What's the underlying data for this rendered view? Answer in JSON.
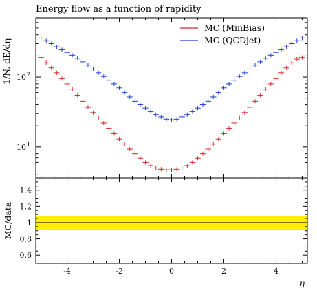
{
  "chart_data": {
    "type": "scatter",
    "title": "Energy flow as a function of rapidity",
    "xlabel": "η",
    "ylabel": "1/N, dE/dη",
    "yscale": "log",
    "xlim": [
      -5.2,
      5.2
    ],
    "ylim": [
      3.6,
      700
    ],
    "x_ticks": [
      -4,
      -2,
      0,
      2,
      4
    ],
    "x_tick_labels": [
      "-4",
      "-2",
      "0",
      "2",
      "4"
    ],
    "y_ticks": [
      {
        "base": "10",
        "exp": "1",
        "value": 10
      },
      {
        "base": "10",
        "exp": "2",
        "value": 100
      }
    ],
    "legend_position": "top-right",
    "series": [
      {
        "name": "MC (MinBias)",
        "color": "#d62728",
        "x": [
          -5.0,
          -4.8,
          -4.6,
          -4.4,
          -4.2,
          -4.0,
          -3.8,
          -3.6,
          -3.4,
          -3.2,
          -3.0,
          -2.8,
          -2.6,
          -2.4,
          -2.2,
          -2.0,
          -1.8,
          -1.6,
          -1.4,
          -1.2,
          -1.0,
          -0.8,
          -0.6,
          -0.4,
          -0.2,
          0.0,
          0.2,
          0.4,
          0.6,
          0.8,
          1.0,
          1.2,
          1.4,
          1.6,
          1.8,
          2.0,
          2.2,
          2.4,
          2.6,
          2.8,
          3.0,
          3.2,
          3.4,
          3.6,
          3.8,
          4.0,
          4.2,
          4.4,
          4.6,
          4.8,
          5.0
        ],
        "y": [
          190,
          160,
          135,
          115,
          95,
          80,
          67,
          55,
          45,
          37,
          31,
          26,
          22,
          18.5,
          15.5,
          13,
          11,
          9.3,
          8,
          6.9,
          6.0,
          5.4,
          5.0,
          4.8,
          4.7,
          4.7,
          4.8,
          5.0,
          5.4,
          6.0,
          6.9,
          8,
          9.3,
          11,
          13,
          15.5,
          18.5,
          22,
          26,
          31,
          37,
          45,
          55,
          67,
          80,
          95,
          115,
          135,
          160,
          180,
          190
        ]
      },
      {
        "name": "MC (QCDjet)",
        "color": "#1f3fd6",
        "x": [
          -5.0,
          -4.8,
          -4.6,
          -4.4,
          -4.2,
          -4.0,
          -3.8,
          -3.6,
          -3.4,
          -3.2,
          -3.0,
          -2.8,
          -2.6,
          -2.4,
          -2.2,
          -2.0,
          -1.8,
          -1.6,
          -1.4,
          -1.2,
          -1.0,
          -0.8,
          -0.6,
          -0.4,
          -0.2,
          0.0,
          0.2,
          0.4,
          0.6,
          0.8,
          1.0,
          1.2,
          1.4,
          1.6,
          1.8,
          2.0,
          2.2,
          2.4,
          2.6,
          2.8,
          3.0,
          3.2,
          3.4,
          3.6,
          3.8,
          4.0,
          4.2,
          4.4,
          4.6,
          4.8,
          5.0
        ],
        "y": [
          360,
          330,
          300,
          270,
          245,
          225,
          205,
          185,
          165,
          148,
          130,
          115,
          102,
          90,
          80,
          70,
          60,
          52,
          45,
          40,
          36,
          32,
          29,
          27,
          25,
          24.5,
          25,
          27,
          29,
          32,
          36,
          40,
          45,
          52,
          60,
          70,
          80,
          90,
          102,
          115,
          130,
          148,
          165,
          185,
          205,
          225,
          245,
          270,
          300,
          330,
          360
        ]
      }
    ],
    "ratio": {
      "ylabel": "MC/data",
      "ylim": [
        0.5,
        1.55
      ],
      "y_ticks": [
        0.6,
        0.8,
        1,
        1.2,
        1.4
      ],
      "y_tick_labels": [
        "0.6",
        "0.8",
        "1",
        "1.2",
        "1.4"
      ],
      "reference": 1,
      "band_low": 0.91,
      "band_high": 1.08,
      "band_color": "#ffee00"
    }
  }
}
